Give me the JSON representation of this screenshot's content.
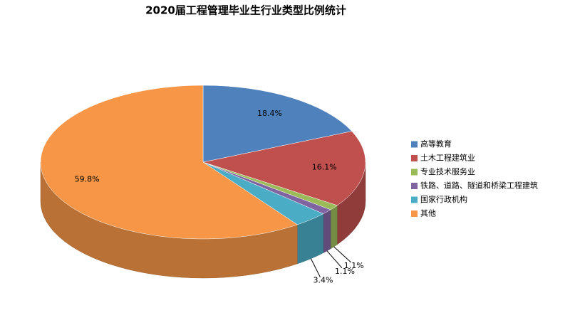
{
  "chart_data": {
    "type": "pie3d",
    "title": "2020届工程管理毕业生行业类型比例统计",
    "categories": [
      "高等教育",
      "土木工程建筑业",
      "专业技术服务业",
      "铁路、道路、隧道和桥梁工程建筑",
      "国家行政机构",
      "其他"
    ],
    "values": [
      18.4,
      16.1,
      1.1,
      1.1,
      3.4,
      59.8
    ],
    "value_labels": [
      "18.4%",
      "16.1%",
      "1.1%",
      "1.1%",
      "3.4%",
      "59.8%"
    ],
    "colors": [
      "#4f81bd",
      "#c0504d",
      "#9bbb59",
      "#8064a2",
      "#4bacc6",
      "#f79646"
    ],
    "legend": "right"
  }
}
